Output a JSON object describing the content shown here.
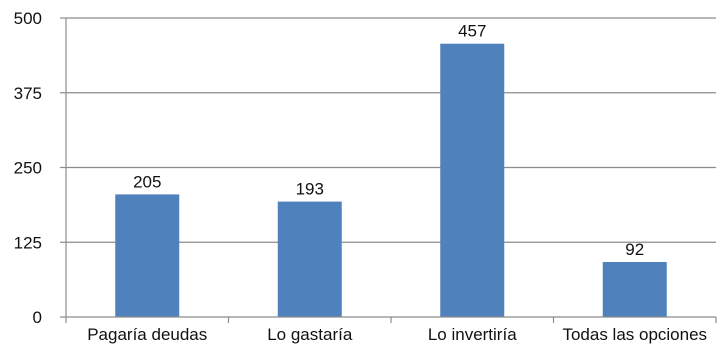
{
  "chart_data": {
    "type": "bar",
    "categories": [
      "Pagaría deudas",
      "Lo gastaría",
      "Lo invertiría",
      "Todas las opciones"
    ],
    "values": [
      205,
      193,
      457,
      92
    ],
    "data_labels": [
      "205",
      "193",
      "457",
      "92"
    ],
    "ylim": [
      0,
      500
    ],
    "yticks": [
      0,
      125,
      250,
      375,
      500
    ],
    "ytick_labels": [
      "0",
      "125",
      "250",
      "375",
      "500"
    ],
    "grid": true,
    "legend": "none",
    "bar_color": "#4f81bd",
    "grid_color": "#8c8c8c",
    "axis_color": "#8c8c8c"
  }
}
